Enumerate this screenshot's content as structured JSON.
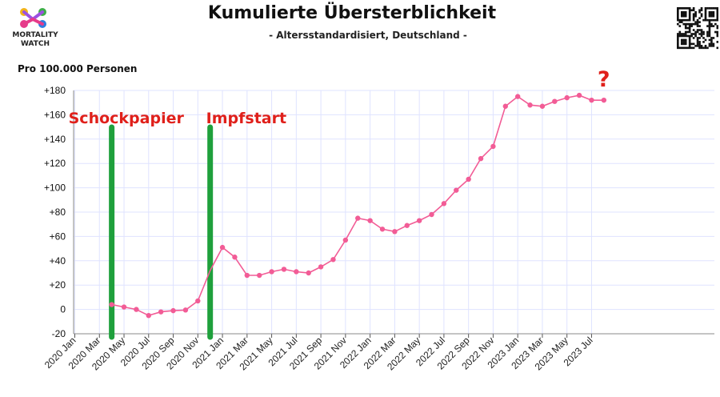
{
  "header": {
    "title": "Kumulierte Übersterblichkeit",
    "subtitle": "- Altersstandardisiert, Deutschland -",
    "logo_line1": "MORTALITY",
    "logo_line2": "WATCH"
  },
  "colors": {
    "series": "#f25c96",
    "marker_line": "#1fa03c",
    "annotation": "#e0201b",
    "grid": "#dfe3ff"
  },
  "icons": {
    "logo": "mortality-watch-logo-icon",
    "qr": "qr-code-icon"
  },
  "chart_data": {
    "type": "line",
    "title": "Kumulierte Übersterblichkeit",
    "subtitle": "- Altersstandardisiert, Deutschland -",
    "ylabel": "Pro 100.000 Personen",
    "xlabel": "",
    "ylim": [
      -20,
      180
    ],
    "yticks": [
      "+180",
      "+160",
      "+140",
      "+120",
      "+100",
      "+80",
      "+60",
      "+40",
      "+20",
      "0",
      "-20"
    ],
    "ytick_values": [
      180,
      160,
      140,
      120,
      100,
      80,
      60,
      40,
      20,
      0,
      -20
    ],
    "x_tick_labels": [
      "2020 Jan",
      "2020 Mar",
      "2020 May",
      "2020 Jul",
      "2020 Sep",
      "2020 Nov",
      "2021 Jan",
      "2021 Mar",
      "2021 May",
      "2021 Jul",
      "2021 Sep",
      "2021 Nov",
      "2022 Jan",
      "2022 Mar",
      "2022 May",
      "2022 Jul",
      "2022 Sep",
      "2022 Nov",
      "2023 Jan",
      "2023 Mar",
      "2023 May",
      "2023 Jul"
    ],
    "grid": true,
    "series": [
      {
        "x": [
          "2020 Apr",
          "2020 May",
          "2020 Jun",
          "2020 Jul",
          "2020 Aug",
          "2020 Sep",
          "2020 Oct",
          "2020 Nov",
          "2020 Dec",
          "2021 Jan",
          "2021 Feb",
          "2021 Mar",
          "2021 Apr",
          "2021 May",
          "2021 Jun",
          "2021 Jul",
          "2021 Aug",
          "2021 Sep",
          "2021 Oct",
          "2021 Nov",
          "2021 Dec",
          "2022 Jan",
          "2022 Feb",
          "2022 Mar",
          "2022 Apr",
          "2022 May",
          "2022 Jun",
          "2022 Jul",
          "2022 Aug",
          "2022 Sep",
          "2022 Oct",
          "2022 Nov",
          "2022 Dec",
          "2023 Jan",
          "2023 Feb",
          "2023 Mar",
          "2023 Apr",
          "2023 May",
          "2023 Jun",
          "2023 Jul",
          "2023 Aug"
        ],
        "values": [
          4,
          2,
          0,
          -5,
          -2,
          -1,
          -0.5,
          7,
          32,
          51,
          43,
          28,
          28,
          31,
          33,
          31,
          30,
          35,
          41,
          57,
          75,
          73,
          66,
          64,
          69,
          73,
          78,
          87,
          98,
          107,
          124,
          134,
          167,
          175,
          168,
          167,
          171,
          174,
          176,
          172,
          172
        ],
        "markers_hidden_at": [
          "2020 Dec"
        ]
      }
    ],
    "annotations": [
      {
        "x": "2020 Apr",
        "label": "Schockpapier"
      },
      {
        "x": "2020 Dec",
        "label": "Impfstart"
      },
      {
        "x": "2023 Aug",
        "label": "?"
      }
    ]
  }
}
